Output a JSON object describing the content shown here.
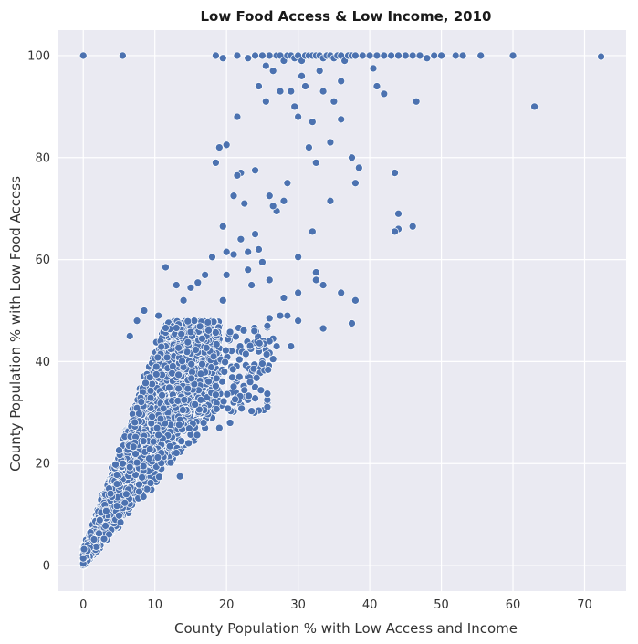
{
  "chart_data": {
    "type": "scatter",
    "title": "Low Food Access & Low Income, 2010",
    "xlabel": "County Population % with Low Access and Income",
    "ylabel": "County Population % with Low Food Access",
    "xlim": [
      -3.6,
      75.8
    ],
    "ylim": [
      -5,
      105
    ],
    "xticks": [
      0,
      10,
      20,
      30,
      40,
      50,
      60,
      70
    ],
    "yticks": [
      0,
      20,
      40,
      60,
      80,
      100
    ],
    "grid": true,
    "legend": "none",
    "background_color": "#eaeaf2",
    "grid_color": "#ffffff",
    "point_color": "#4c72b0",
    "point_edge_color": "#ffffff",
    "series": [
      {
        "points": [
          [
            0,
            100
          ],
          [
            5.5,
            100
          ],
          [
            18.5,
            100
          ],
          [
            19.5,
            99.5
          ],
          [
            21.5,
            100
          ],
          [
            23,
            99.5
          ],
          [
            24,
            100
          ],
          [
            25,
            100
          ],
          [
            25.5,
            98
          ],
          [
            26,
            100
          ],
          [
            26.5,
            97
          ],
          [
            27,
            100
          ],
          [
            27.5,
            100
          ],
          [
            28,
            99
          ],
          [
            28.5,
            100
          ],
          [
            29,
            100
          ],
          [
            29.5,
            99.5
          ],
          [
            30,
            100
          ],
          [
            30.5,
            99
          ],
          [
            31,
            100
          ],
          [
            31.5,
            100
          ],
          [
            32,
            100
          ],
          [
            32.5,
            100
          ],
          [
            33,
            100
          ],
          [
            33.5,
            99.5
          ],
          [
            34,
            100
          ],
          [
            34.5,
            100
          ],
          [
            35,
            99.5
          ],
          [
            35.5,
            100
          ],
          [
            36,
            100
          ],
          [
            36.5,
            99
          ],
          [
            37,
            100
          ],
          [
            37.5,
            100
          ],
          [
            38,
            100
          ],
          [
            39,
            100
          ],
          [
            40,
            100
          ],
          [
            41,
            100
          ],
          [
            42,
            100
          ],
          [
            43,
            100
          ],
          [
            44,
            100
          ],
          [
            45,
            100
          ],
          [
            46,
            100
          ],
          [
            47,
            100
          ],
          [
            48,
            99.5
          ],
          [
            49,
            100
          ],
          [
            50,
            100
          ],
          [
            52,
            100
          ],
          [
            53,
            100
          ],
          [
            55.5,
            100
          ],
          [
            60,
            100
          ],
          [
            72.3,
            99.8
          ],
          [
            63,
            90
          ],
          [
            46.5,
            91
          ],
          [
            43.5,
            77
          ],
          [
            42,
            92.5
          ],
          [
            41,
            94
          ],
          [
            40.5,
            97.5
          ],
          [
            38.5,
            78
          ],
          [
            38,
            75
          ],
          [
            37.5,
            80
          ],
          [
            36,
            95
          ],
          [
            36,
            87.5
          ],
          [
            35,
            91
          ],
          [
            34.5,
            83
          ],
          [
            34.5,
            71.5
          ],
          [
            33.5,
            93
          ],
          [
            33,
            97
          ],
          [
            32.5,
            79
          ],
          [
            32,
            87
          ],
          [
            31.5,
            82
          ],
          [
            31,
            94
          ],
          [
            30.5,
            96
          ],
          [
            30,
            88
          ],
          [
            29.5,
            90
          ],
          [
            29,
            93
          ],
          [
            28.5,
            75
          ],
          [
            28,
            71.5
          ],
          [
            27.5,
            93
          ],
          [
            27,
            69.5
          ],
          [
            26.5,
            70.5
          ],
          [
            26,
            72.5
          ],
          [
            25.5,
            91
          ],
          [
            24.5,
            94
          ],
          [
            24,
            77.5
          ],
          [
            23,
            61.5
          ],
          [
            22.5,
            71
          ],
          [
            22,
            77
          ],
          [
            21.5,
            76.5
          ],
          [
            21.5,
            88
          ],
          [
            21,
            72.5
          ],
          [
            20,
            82.5
          ],
          [
            20,
            61.5
          ],
          [
            19.5,
            66.5
          ],
          [
            19,
            82
          ],
          [
            18.5,
            79
          ],
          [
            44,
            69
          ],
          [
            44,
            66
          ],
          [
            46,
            66.5
          ],
          [
            43.5,
            65.5
          ],
          [
            38,
            52
          ],
          [
            37.5,
            47.5
          ],
          [
            36,
            53.5
          ],
          [
            33.5,
            46.5
          ],
          [
            33.5,
            55
          ],
          [
            32.5,
            56
          ],
          [
            32.5,
            57.5
          ],
          [
            32,
            65.5
          ],
          [
            30,
            60.5
          ],
          [
            30,
            53.5
          ],
          [
            30,
            48
          ],
          [
            29,
            43
          ],
          [
            28.5,
            49
          ],
          [
            28,
            52.5
          ],
          [
            27.5,
            49
          ],
          [
            26.5,
            44.5
          ],
          [
            26,
            48.5
          ],
          [
            26,
            56
          ],
          [
            25,
            59.5
          ],
          [
            24.5,
            62
          ],
          [
            24,
            65
          ],
          [
            23.5,
            55
          ],
          [
            23,
            58
          ],
          [
            22,
            64
          ],
          [
            21,
            61
          ],
          [
            20,
            57
          ],
          [
            19.5,
            52
          ],
          [
            19,
            47
          ],
          [
            19,
            27
          ],
          [
            20.5,
            28
          ],
          [
            21,
            32
          ],
          [
            22,
            31.5
          ],
          [
            22.5,
            33
          ],
          [
            23,
            37
          ],
          [
            24,
            35
          ],
          [
            24.5,
            42
          ],
          [
            25,
            40
          ],
          [
            26,
            44
          ],
          [
            26.5,
            40.5
          ],
          [
            27,
            43
          ],
          [
            11.5,
            58.5
          ],
          [
            10.5,
            49
          ],
          [
            8.5,
            50
          ],
          [
            7.5,
            48
          ],
          [
            6.5,
            45
          ],
          [
            12.5,
            25
          ],
          [
            13.5,
            17.5
          ],
          [
            15.5,
            24.5
          ],
          [
            17,
            27
          ],
          [
            18,
            30
          ],
          [
            13,
            55
          ],
          [
            14,
            52
          ],
          [
            15,
            54.5
          ],
          [
            16,
            55.5
          ],
          [
            17,
            57
          ],
          [
            18,
            60.5
          ]
        ]
      }
    ]
  }
}
